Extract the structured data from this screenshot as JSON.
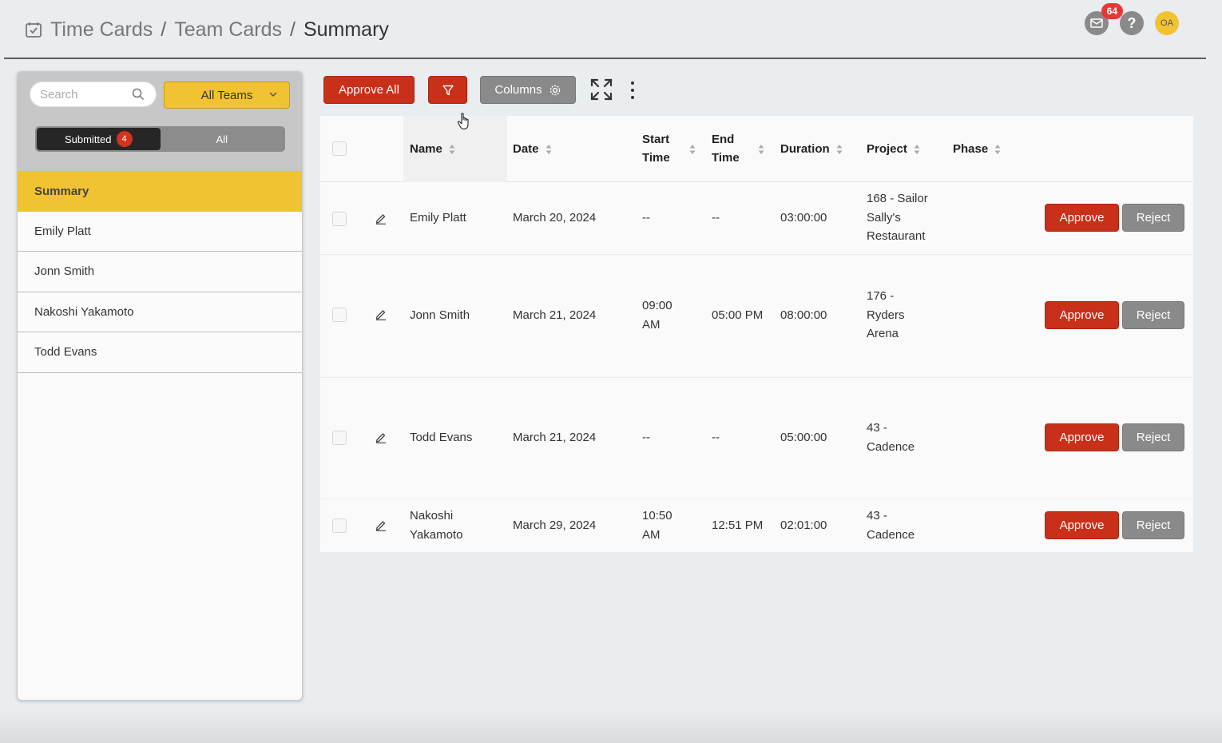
{
  "breadcrumb": {
    "items": [
      "Time Cards",
      "Team Cards"
    ],
    "current": "Summary",
    "separator": "/"
  },
  "header": {
    "notification_count": "64",
    "help_label": "?",
    "avatar_initials": "OA"
  },
  "sidebar": {
    "search_placeholder": "Search",
    "team_select": "All Teams",
    "segments": {
      "submitted_label": "Submitted",
      "submitted_count": "4",
      "all_label": "All"
    },
    "items": [
      {
        "label": "Summary",
        "active": true
      },
      {
        "label": "Emily Platt",
        "active": false
      },
      {
        "label": "Jonn Smith",
        "active": false
      },
      {
        "label": "Nakoshi Yakamoto",
        "active": false
      },
      {
        "label": "Todd Evans",
        "active": false
      }
    ]
  },
  "toolbar": {
    "approve_all_label": "Approve All",
    "filter_icon": "filter-icon",
    "columns_label": "Columns",
    "expand_icon": "expand-icon",
    "more_icon": "more-vertical-icon"
  },
  "table": {
    "headers": {
      "name": "Name",
      "date": "Date",
      "start_line1": "Start",
      "start_line2": "Time",
      "end_line1": "End",
      "end_line2": "Time",
      "duration": "Duration",
      "project": "Project",
      "phase": "Phase"
    },
    "rows": [
      {
        "name_line1": "Emily Platt",
        "name_line2": "",
        "date": "March 20, 2024",
        "start_line1": "--",
        "start_line2": "",
        "end": "--",
        "duration": "03:00:00",
        "project_line1": "168 - Sailor",
        "project_line2": "Sally's",
        "project_line3": "Restaurant",
        "phase": "",
        "approve_label": "Approve",
        "reject_label": "Reject"
      },
      {
        "name_line1": "Jonn Smith",
        "name_line2": "",
        "date": "March 21, 2024",
        "start_line1": "09:00",
        "start_line2": "AM",
        "end": "05:00 PM",
        "duration": "08:00:00",
        "project_line1": "176 -",
        "project_line2": "Ryders",
        "project_line3": "Arena",
        "phase": "",
        "approve_label": "Approve",
        "reject_label": "Reject"
      },
      {
        "name_line1": "Todd Evans",
        "name_line2": "",
        "date": "March 21, 2024",
        "start_line1": "--",
        "start_line2": "",
        "end": "--",
        "duration": "05:00:00",
        "project_line1": "43 -",
        "project_line2": "Cadence",
        "project_line3": "",
        "phase": "",
        "approve_label": "Approve",
        "reject_label": "Reject"
      },
      {
        "name_line1": "Nakoshi",
        "name_line2": "Yakamoto",
        "date": "March 29, 2024",
        "start_line1": "10:50",
        "start_line2": "AM",
        "end": "12:51 PM",
        "duration": "02:01:00",
        "project_line1": "43 -",
        "project_line2": "Cadence",
        "project_line3": "",
        "phase": "",
        "approve_label": "Approve",
        "reject_label": "Reject"
      }
    ]
  },
  "colors": {
    "accent_yellow": "#f1c232",
    "primary_red": "#c8301a",
    "neutral_gray": "#8a8a8a"
  }
}
